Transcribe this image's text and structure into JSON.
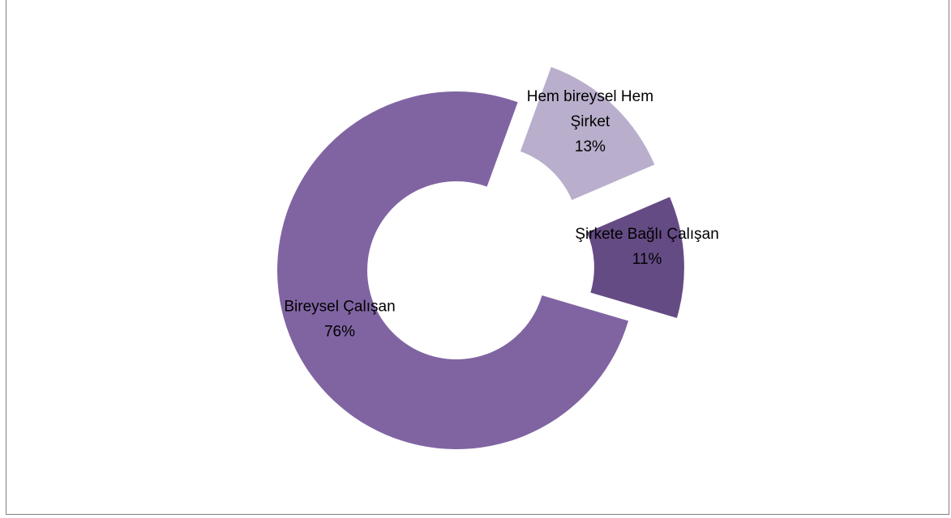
{
  "chart_data": {
    "type": "pie",
    "variant": "doughnut-exploded",
    "title": "",
    "legend": "none",
    "slices": [
      {
        "name": "Hem bireysel Hem Şirket",
        "label_lines": [
          "Hem bireysel Hem",
          "Şirket"
        ],
        "value": 13,
        "percent_label": "13%",
        "color": "#b9afcc",
        "exploded": true
      },
      {
        "name": "Şirkete Bağlı Çalışan",
        "label_lines": [
          "Şirkete Bağlı Çalışan"
        ],
        "value": 11,
        "percent_label": "11%",
        "color": "#654b84",
        "exploded": true
      },
      {
        "name": "Bireysel Çalışan",
        "label_lines": [
          "Bireysel Çalışan"
        ],
        "value": 76,
        "percent_label": "76%",
        "color": "#8064a2",
        "exploded": false
      }
    ]
  }
}
